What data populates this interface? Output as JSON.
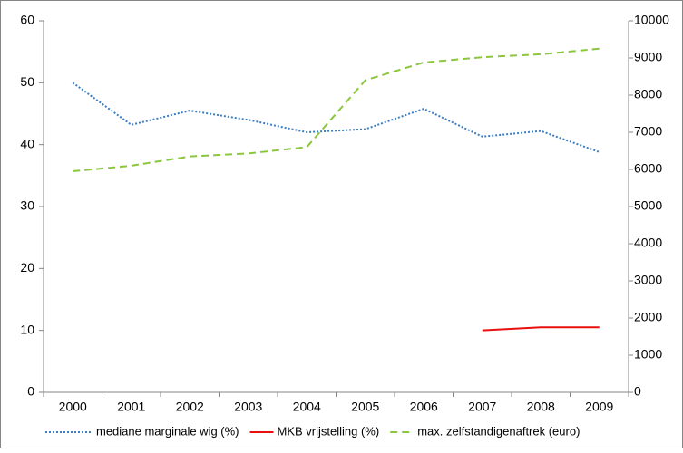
{
  "chart_data": {
    "type": "line",
    "categories": [
      "2000",
      "2001",
      "2002",
      "2003",
      "2004",
      "2005",
      "2006",
      "2007",
      "2008",
      "2009"
    ],
    "series": [
      {
        "name": "mediane marginale wig (%)",
        "color": "#3b7dc4",
        "dash": "dotted",
        "values": [
          50,
          43.2,
          45.5,
          44,
          42,
          42.5,
          45.8,
          41.3,
          42.2,
          38.8
        ]
      },
      {
        "name": "MKB vrijstelling (%)",
        "color": "#e8100f",
        "dash": "solid",
        "values": [
          null,
          null,
          null,
          null,
          null,
          null,
          null,
          10,
          10.5,
          10.5
        ]
      },
      {
        "name": "max. zelfstandigenaftrek (euro)",
        "color": "#8cc63f",
        "dash": "dashed",
        "axis": "y2",
        "values": [
          5950,
          6100,
          6350,
          6430,
          6600,
          8400,
          8880,
          9020,
          9100,
          9250
        ]
      }
    ],
    "ylim": [
      0,
      60
    ],
    "yticks": [
      0,
      10,
      20,
      30,
      40,
      50,
      60
    ],
    "y2lim": [
      0,
      10000
    ],
    "y2ticks": [
      0,
      1000,
      2000,
      3000,
      4000,
      5000,
      6000,
      7000,
      8000,
      9000,
      10000
    ],
    "legend": "bottom"
  }
}
